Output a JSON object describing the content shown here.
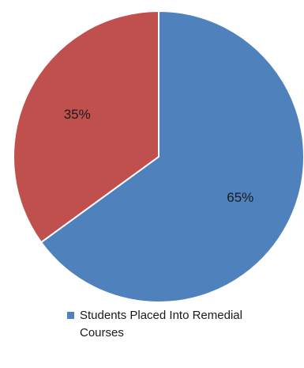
{
  "chart_data": {
    "type": "pie",
    "slices": [
      {
        "name": "Students Placed Into Remedial Courses",
        "value": 65,
        "label": "65%",
        "color": "#4f81bd"
      },
      {
        "name": "",
        "value": 35,
        "label": "35%",
        "color": "#c0504d"
      }
    ],
    "start": "top",
    "direction": "clockwise",
    "legend_position": "bottom",
    "legend": [
      {
        "label": "Students Placed Into Remedial Courses",
        "color": "#4f81bd"
      }
    ]
  }
}
